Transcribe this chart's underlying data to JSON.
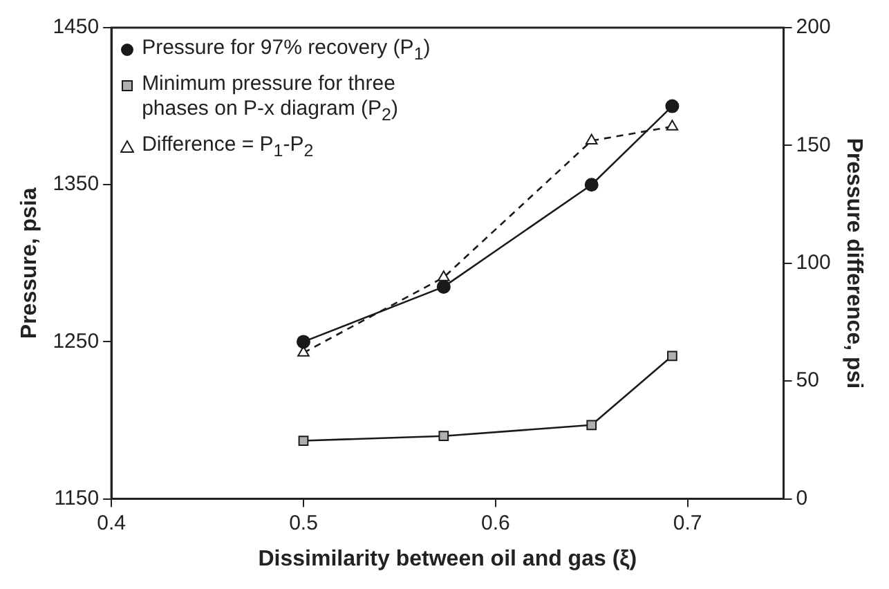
{
  "chart_data": {
    "type": "line",
    "xlabel": "Dissimilarity between oil and gas (ξ)",
    "ylabel": "Pressure, psia",
    "y2label": "Pressure difference, psi",
    "x": [
      0.5,
      0.573,
      0.65,
      0.692
    ],
    "series": [
      {
        "name": "Pressure for 97% recovery (P$_{1}$)",
        "color": "#1a1a1a",
        "values": [
          1250,
          1285,
          1350,
          1400
        ],
        "marker": "circle",
        "line_style": "solid"
      },
      {
        "name": "Minimum pressure for three phases on P-x diagram (P$_{2}$)",
        "color": "#b0b0b0",
        "values": [
          1187,
          1190,
          1197,
          1241
        ],
        "marker": "square",
        "line_style": "solid"
      },
      {
        "name": "Difference = P$_{1}$-P$_{2}$",
        "color": "#ffffff",
        "values": [
          62,
          94,
          152,
          158
        ],
        "marker": "triangle",
        "line_style": "dashed",
        "axis": "y2"
      }
    ],
    "xlim": [
      0.4,
      0.75
    ],
    "xticks": [
      0.4,
      0.5,
      0.6,
      0.7
    ],
    "ylim": [
      1150,
      1450
    ],
    "yticks": [
      1150,
      1250,
      1350,
      1450
    ],
    "y2lim": [
      0,
      200
    ],
    "y2ticks": [
      0,
      50,
      100,
      150,
      200
    ],
    "grid": false,
    "legend": "top left"
  }
}
